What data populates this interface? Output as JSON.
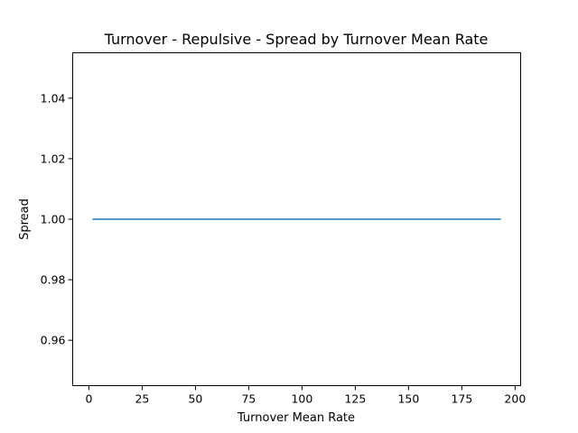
{
  "chart_data": {
    "type": "line",
    "title": "Turnover - Repulsive - Spread by Turnover Mean Rate",
    "xlabel": "Turnover Mean Rate",
    "ylabel": "Spread",
    "xlim": [
      -7.6,
      202.6
    ],
    "ylim": [
      0.945,
      1.055
    ],
    "xticks": [
      0,
      25,
      50,
      75,
      100,
      125,
      150,
      175,
      200
    ],
    "xtick_labels": [
      "0",
      "25",
      "50",
      "75",
      "100",
      "125",
      "150",
      "175",
      "200"
    ],
    "yticks": [
      0.96,
      0.98,
      1.0,
      1.02,
      1.04
    ],
    "ytick_labels": [
      "0.96",
      "0.98",
      "1.00",
      "1.02",
      "1.04"
    ],
    "grid": false,
    "series": [
      {
        "color": "#1f77b4",
        "x": [
          2,
          193
        ],
        "y": [
          1.0,
          1.0
        ]
      }
    ]
  }
}
